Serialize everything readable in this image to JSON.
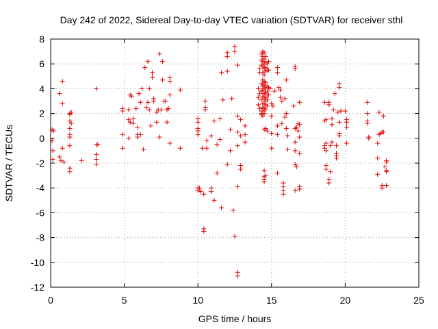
{
  "chart_data": {
    "type": "scatter",
    "title": "Day 242 of 2022, Sidereal Day-to-day VTEC variation (SDTVAR) for receiver sthl",
    "xlabel": "GPS time / hours",
    "ylabel": "SDTVAR / TECUs",
    "xlim": [
      0,
      25
    ],
    "ylim": [
      -12,
      8
    ],
    "xticks": [
      0,
      5,
      10,
      15,
      20,
      25
    ],
    "yticks": [
      -12,
      -10,
      -8,
      -6,
      -4,
      -2,
      0,
      2,
      4,
      6,
      8
    ],
    "grid": true,
    "marker": "plus",
    "color": "#e00000",
    "series": [
      {
        "name": "SDTVAR",
        "points": [
          [
            0.1,
            0.7
          ],
          [
            0.1,
            -0.2
          ],
          [
            0.15,
            -1.0
          ],
          [
            0.15,
            -1.7
          ],
          [
            0.2,
            0.6
          ],
          [
            0.6,
            3.6
          ],
          [
            0.6,
            -1.5
          ],
          [
            0.7,
            -1.8
          ],
          [
            0.8,
            4.6
          ],
          [
            0.8,
            2.8
          ],
          [
            0.8,
            -0.8
          ],
          [
            0.9,
            -1.9
          ],
          [
            1.3,
            2.0
          ],
          [
            1.3,
            1.9
          ],
          [
            1.3,
            1.4
          ],
          [
            1.3,
            0.8
          ],
          [
            1.3,
            0.3
          ],
          [
            1.3,
            0.1
          ],
          [
            1.3,
            -0.6
          ],
          [
            1.3,
            -2.4
          ],
          [
            1.3,
            -2.7
          ],
          [
            1.4,
            2.1
          ],
          [
            1.4,
            1.2
          ],
          [
            2.1,
            -1.8
          ],
          [
            3.1,
            4.0
          ],
          [
            3.1,
            -0.5
          ],
          [
            3.1,
            -1.3
          ],
          [
            3.1,
            -1.7
          ],
          [
            3.1,
            -2.1
          ],
          [
            3.2,
            -0.5
          ],
          [
            4.9,
            2.4
          ],
          [
            4.9,
            2.2
          ],
          [
            4.9,
            0.3
          ],
          [
            4.9,
            -0.8
          ],
          [
            5.3,
            2.3
          ],
          [
            5.3,
            1.5
          ],
          [
            5.3,
            0.0
          ],
          [
            5.4,
            3.5
          ],
          [
            5.4,
            1.3
          ],
          [
            5.5,
            3.4
          ],
          [
            5.6,
            1.6
          ],
          [
            5.6,
            1.2
          ],
          [
            5.8,
            2.4
          ],
          [
            5.9,
            0.9
          ],
          [
            5.9,
            0.3
          ],
          [
            5.9,
            0.1
          ],
          [
            6.0,
            3.6
          ],
          [
            6.1,
            2.9
          ],
          [
            6.1,
            0.3
          ],
          [
            6.2,
            4.0
          ],
          [
            6.3,
            -0.9
          ],
          [
            6.4,
            5.7
          ],
          [
            6.5,
            2.5
          ],
          [
            6.6,
            6.2
          ],
          [
            6.6,
            2.9
          ],
          [
            6.7,
            4.0
          ],
          [
            6.7,
            2.3
          ],
          [
            6.8,
            1.0
          ],
          [
            6.9,
            5.3
          ],
          [
            6.9,
            4.9
          ],
          [
            7.0,
            3.2
          ],
          [
            7.0,
            3.0
          ],
          [
            7.2,
            2.1
          ],
          [
            7.2,
            1.3
          ],
          [
            7.3,
            2.3
          ],
          [
            7.4,
            6.8
          ],
          [
            7.4,
            0.1
          ],
          [
            7.5,
            2.3
          ],
          [
            7.6,
            6.2
          ],
          [
            7.6,
            4.7
          ],
          [
            7.7,
            3.0
          ],
          [
            7.8,
            3.0
          ],
          [
            7.9,
            2.3
          ],
          [
            7.9,
            1.3
          ],
          [
            8.0,
            2.4
          ],
          [
            8.1,
            4.9
          ],
          [
            8.1,
            4.6
          ],
          [
            8.1,
            3.5
          ],
          [
            8.1,
            -0.4
          ],
          [
            8.8,
            3.9
          ],
          [
            8.8,
            -0.8
          ],
          [
            10.0,
            1.6
          ],
          [
            10.0,
            1.3
          ],
          [
            10.0,
            0.8
          ],
          [
            10.0,
            0.6
          ],
          [
            10.0,
            0.3
          ],
          [
            10.0,
            -4.0
          ],
          [
            10.0,
            -4.2
          ],
          [
            10.1,
            -4.0
          ],
          [
            10.2,
            -4.3
          ],
          [
            10.3,
            -0.8
          ],
          [
            10.4,
            -4.5
          ],
          [
            10.4,
            -7.3
          ],
          [
            10.4,
            -7.5
          ],
          [
            10.5,
            3.0
          ],
          [
            10.5,
            2.5
          ],
          [
            10.5,
            2.3
          ],
          [
            10.6,
            -0.2
          ],
          [
            10.6,
            -0.8
          ],
          [
            10.9,
            -4.0
          ],
          [
            10.9,
            -4.3
          ],
          [
            10.9,
            0.2
          ],
          [
            11.1,
            1.4
          ],
          [
            11.1,
            -5.0
          ],
          [
            11.3,
            -0.5
          ],
          [
            11.3,
            -2.8
          ],
          [
            11.5,
            1.6
          ],
          [
            11.5,
            -0.1
          ],
          [
            11.6,
            5.3
          ],
          [
            11.6,
            -5.6
          ],
          [
            11.7,
            3.1
          ],
          [
            12.0,
            6.9
          ],
          [
            12.0,
            6.6
          ],
          [
            12.0,
            5.4
          ],
          [
            12.0,
            -2.1
          ],
          [
            12.2,
            0.7
          ],
          [
            12.2,
            -1.0
          ],
          [
            12.3,
            3.2
          ],
          [
            12.4,
            -5.8
          ],
          [
            12.5,
            7.4
          ],
          [
            12.5,
            7.0
          ],
          [
            12.5,
            -7.9
          ],
          [
            12.7,
            5.9
          ],
          [
            12.7,
            1.8
          ],
          [
            12.7,
            0.5
          ],
          [
            12.7,
            -0.6
          ],
          [
            12.7,
            -3.9
          ],
          [
            12.7,
            -10.8
          ],
          [
            12.7,
            -11.1
          ],
          [
            12.9,
            1.5
          ],
          [
            12.9,
            0.2
          ],
          [
            12.9,
            -2.2
          ],
          [
            12.9,
            -2.5
          ],
          [
            13.2,
            1.0
          ],
          [
            13.2,
            0.3
          ],
          [
            13.2,
            -0.3
          ],
          [
            14.1,
            4.0
          ],
          [
            14.1,
            3.3
          ],
          [
            14.1,
            2.7
          ],
          [
            14.2,
            5.6
          ],
          [
            14.2,
            5.3
          ],
          [
            14.2,
            3.6
          ],
          [
            14.2,
            2.4
          ],
          [
            14.3,
            6.8
          ],
          [
            14.3,
            6.3
          ],
          [
            14.3,
            5.9
          ],
          [
            14.3,
            4.4
          ],
          [
            14.3,
            3.8
          ],
          [
            14.3,
            3.1
          ],
          [
            14.3,
            2.2
          ],
          [
            14.3,
            2.0
          ],
          [
            14.3,
            1.9
          ],
          [
            14.4,
            7.0
          ],
          [
            14.4,
            6.6
          ],
          [
            14.4,
            6.2
          ],
          [
            14.4,
            5.8
          ],
          [
            14.4,
            5.3
          ],
          [
            14.4,
            4.7
          ],
          [
            14.4,
            4.4
          ],
          [
            14.4,
            4.2
          ],
          [
            14.4,
            3.9
          ],
          [
            14.4,
            3.4
          ],
          [
            14.4,
            2.8
          ],
          [
            14.4,
            2.5
          ],
          [
            14.4,
            2.2
          ],
          [
            14.4,
            1.8
          ],
          [
            14.5,
            6.9
          ],
          [
            14.5,
            6.4
          ],
          [
            14.5,
            6.0
          ],
          [
            14.5,
            5.6
          ],
          [
            14.5,
            5.1
          ],
          [
            14.5,
            4.6
          ],
          [
            14.5,
            4.3
          ],
          [
            14.5,
            4.0
          ],
          [
            14.5,
            3.6
          ],
          [
            14.5,
            3.2
          ],
          [
            14.5,
            2.8
          ],
          [
            14.5,
            2.4
          ],
          [
            14.5,
            2.0
          ],
          [
            14.5,
            0.7
          ],
          [
            14.5,
            -2.6
          ],
          [
            14.5,
            -3.1
          ],
          [
            14.5,
            -3.3
          ],
          [
            14.5,
            -3.5
          ],
          [
            14.6,
            6.6
          ],
          [
            14.6,
            6.1
          ],
          [
            14.6,
            5.7
          ],
          [
            14.6,
            5.4
          ],
          [
            14.6,
            4.5
          ],
          [
            14.6,
            4.1
          ],
          [
            14.6,
            3.7
          ],
          [
            14.6,
            3.3
          ],
          [
            14.6,
            3.0
          ],
          [
            14.6,
            2.7
          ],
          [
            14.6,
            2.3
          ],
          [
            14.6,
            0.8
          ],
          [
            14.6,
            -3.0
          ],
          [
            14.7,
            6.0
          ],
          [
            14.7,
            5.5
          ],
          [
            14.7,
            4.2
          ],
          [
            14.7,
            3.8
          ],
          [
            14.7,
            3.5
          ],
          [
            14.7,
            3.1
          ],
          [
            14.7,
            2.6
          ],
          [
            14.7,
            0.6
          ],
          [
            14.8,
            6.2
          ],
          [
            14.8,
            5.5
          ],
          [
            14.8,
            4.1
          ],
          [
            14.8,
            3.5
          ],
          [
            14.9,
            4.0
          ],
          [
            15.0,
            2.8
          ],
          [
            15.0,
            1.8
          ],
          [
            15.0,
            0.4
          ],
          [
            15.0,
            -0.8
          ],
          [
            15.1,
            2.6
          ],
          [
            15.2,
            3.8
          ],
          [
            15.4,
            5.7
          ],
          [
            15.4,
            5.3
          ],
          [
            15.4,
            1.0
          ],
          [
            15.4,
            0.3
          ],
          [
            15.4,
            -2.8
          ],
          [
            15.5,
            4.1
          ],
          [
            15.6,
            3.9
          ],
          [
            15.6,
            3.3
          ],
          [
            15.7,
            3.0
          ],
          [
            15.7,
            1.2
          ],
          [
            15.8,
            -3.6
          ],
          [
            15.8,
            -3.9
          ],
          [
            15.8,
            -4.2
          ],
          [
            15.8,
            -4.5
          ],
          [
            15.9,
            3.2
          ],
          [
            15.9,
            1.7
          ],
          [
            16.0,
            2.0
          ],
          [
            16.0,
            4.7
          ],
          [
            16.0,
            0.8
          ],
          [
            16.1,
            0.2
          ],
          [
            16.1,
            -0.9
          ],
          [
            16.5,
            2.6
          ],
          [
            16.6,
            5.8
          ],
          [
            16.6,
            5.6
          ],
          [
            16.6,
            0.8
          ],
          [
            16.6,
            -0.3
          ],
          [
            16.6,
            -1.0
          ],
          [
            16.6,
            -2.1
          ],
          [
            16.6,
            -4.2
          ],
          [
            16.7,
            0.9
          ],
          [
            16.7,
            -2.3
          ],
          [
            16.8,
            1.2
          ],
          [
            16.8,
            0.6
          ],
          [
            16.9,
            2.9
          ],
          [
            16.9,
            1.1
          ],
          [
            16.9,
            0.1
          ],
          [
            16.9,
            -1.2
          ],
          [
            16.9,
            -3.9
          ],
          [
            16.9,
            -4.1
          ],
          [
            18.6,
            2.9
          ],
          [
            18.6,
            1.4
          ],
          [
            18.6,
            -0.6
          ],
          [
            18.6,
            -0.8
          ],
          [
            18.7,
            1.5
          ],
          [
            18.7,
            -0.4
          ],
          [
            18.7,
            -1.0
          ],
          [
            18.7,
            -2.2
          ],
          [
            18.7,
            -2.5
          ],
          [
            18.9,
            2.9
          ],
          [
            18.9,
            2.7
          ],
          [
            18.9,
            -3.3
          ],
          [
            18.9,
            -3.6
          ],
          [
            19.0,
            -0.6
          ],
          [
            19.0,
            -2.7
          ],
          [
            19.1,
            1.6
          ],
          [
            19.1,
            1.1
          ],
          [
            19.1,
            -0.3
          ],
          [
            19.2,
            2.3
          ],
          [
            19.3,
            3.6
          ],
          [
            19.4,
            -0.6
          ],
          [
            19.4,
            -1.2
          ],
          [
            19.4,
            -1.4
          ],
          [
            19.4,
            -1.6
          ],
          [
            19.5,
            2.1
          ],
          [
            19.6,
            4.4
          ],
          [
            19.6,
            4.1
          ],
          [
            19.6,
            1.3
          ],
          [
            19.6,
            0.4
          ],
          [
            19.6,
            0.2
          ],
          [
            19.7,
            2.2
          ],
          [
            20.0,
            2.2
          ],
          [
            20.1,
            1.3
          ],
          [
            20.1,
            0.9
          ],
          [
            20.1,
            1.5
          ],
          [
            20.1,
            -0.4
          ],
          [
            21.5,
            2.9
          ],
          [
            21.5,
            2.0
          ],
          [
            21.5,
            1.4
          ],
          [
            21.5,
            1.2
          ],
          [
            21.6,
            0.1
          ],
          [
            21.6,
            0.0
          ],
          [
            22.2,
            -0.4
          ],
          [
            22.2,
            -1.6
          ],
          [
            22.2,
            -2.9
          ],
          [
            22.3,
            2.1
          ],
          [
            22.3,
            0.3
          ],
          [
            22.4,
            0.4
          ],
          [
            22.5,
            0.5
          ],
          [
            22.5,
            -3.8
          ],
          [
            22.5,
            -4.0
          ],
          [
            22.6,
            1.8
          ],
          [
            22.6,
            0.5
          ],
          [
            22.7,
            -2.3
          ],
          [
            22.8,
            -1.8
          ],
          [
            22.8,
            -1.9
          ],
          [
            22.8,
            -2.6
          ],
          [
            22.8,
            -2.7
          ],
          [
            22.8,
            -3.8
          ]
        ]
      }
    ]
  }
}
